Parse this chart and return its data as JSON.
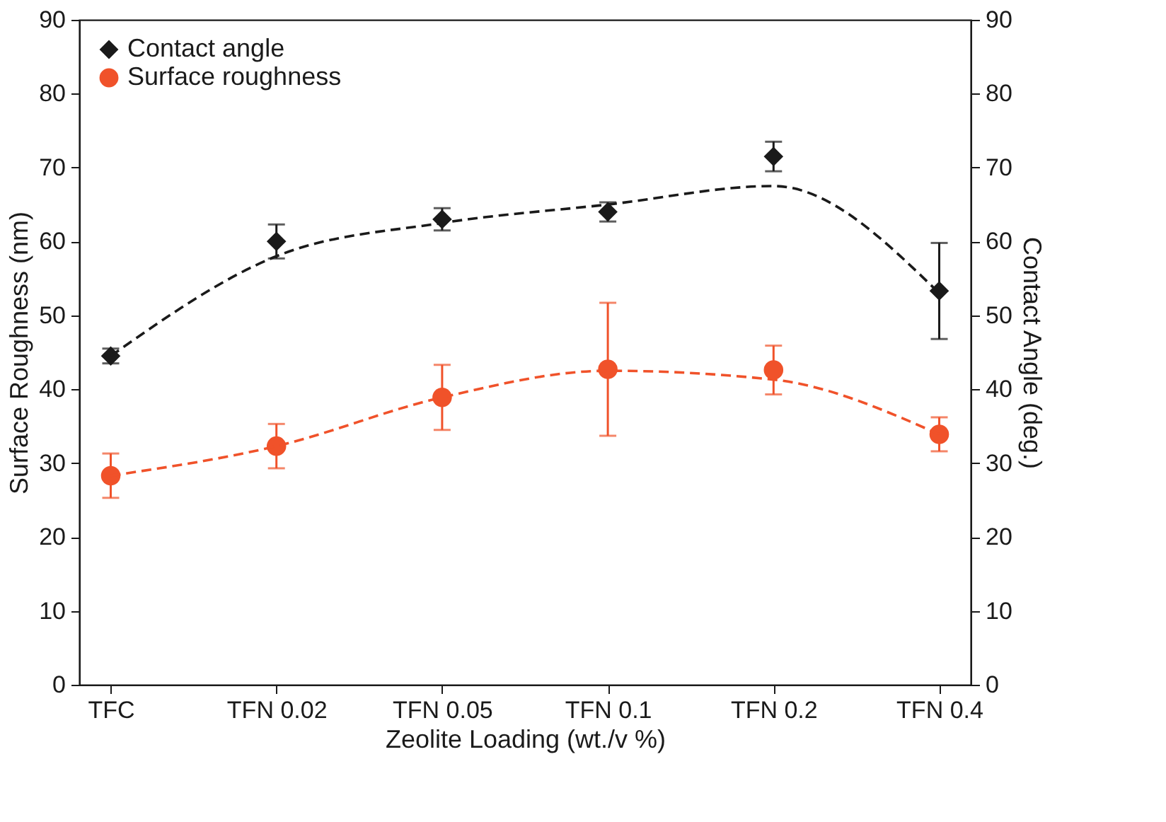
{
  "chart_data": {
    "type": "scatter",
    "xlabel": "Zeolite Loading (wt./v %)",
    "ylabel": "Surface Roughness (nm)",
    "y2label": "Contact Angle (deg.)",
    "categories": [
      "TFC",
      "TFN 0.02",
      "TFN 0.05",
      "TFN 0.1",
      "TFN 0.2",
      "TFN 0.4"
    ],
    "ylim": [
      0,
      90
    ],
    "yticks": [
      0,
      10,
      20,
      30,
      40,
      50,
      60,
      70,
      80,
      90
    ],
    "y2lim": [
      0,
      90
    ],
    "y2ticks": [
      0,
      10,
      20,
      30,
      40,
      50,
      60,
      70,
      80,
      90
    ],
    "grid": false,
    "legend": "top left",
    "line_style": "dashed",
    "series": [
      {
        "name": "Contact angle",
        "axis": "y2",
        "color": "#1a1a1a",
        "marker": "diamond",
        "values": [
          44.5,
          60,
          63,
          64,
          71.5,
          53.3
        ],
        "errors": [
          1,
          2.3,
          1.5,
          1.3,
          2,
          6.5
        ]
      },
      {
        "name": "Surface roughness",
        "color": "#f0522a",
        "marker": "circle",
        "values": [
          28.3,
          32.3,
          38.9,
          42.7,
          42.6,
          33.9
        ],
        "errors": [
          3,
          3,
          4.4,
          9,
          3.3,
          2.3
        ]
      },
      {
        "type": "line",
        "axis": "y2",
        "color": "#1a1a1a",
        "values": [
          44.5,
          58,
          62.5,
          65,
          67.5,
          53
        ]
      },
      {
        "type": "line",
        "color": "#f0522a",
        "values": [
          28.3,
          32.3,
          38.9,
          42.5,
          41.3,
          33.9
        ]
      }
    ]
  }
}
